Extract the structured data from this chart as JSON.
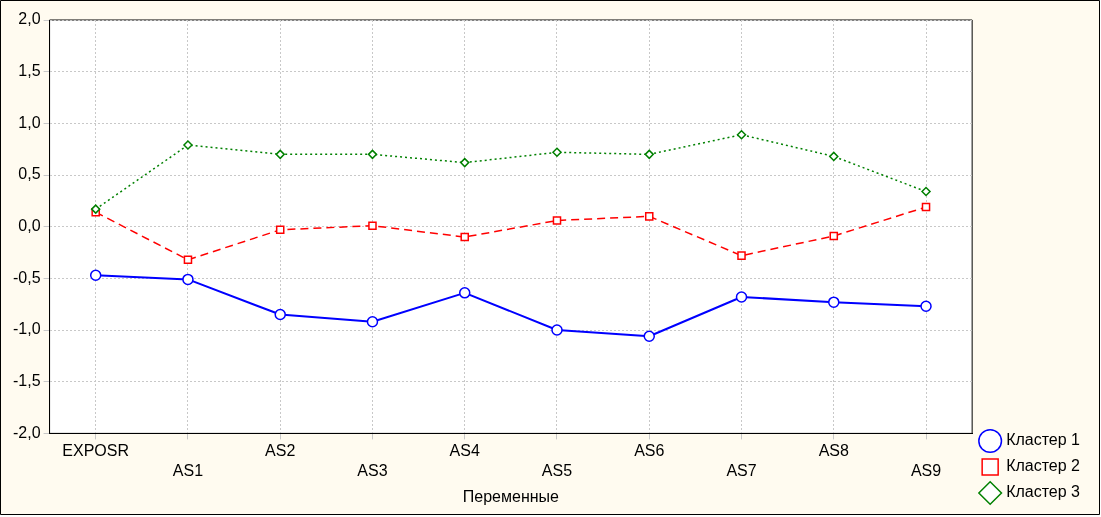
{
  "chart_data": {
    "type": "line",
    "xlabel": "Переменные",
    "categories": [
      "EXPOSR",
      "AS1",
      "AS2",
      "AS3",
      "AS4",
      "AS5",
      "AS6",
      "AS7",
      "AS8",
      "AS9"
    ],
    "series": [
      {
        "name": "Кластер 1",
        "color": "#0000ff",
        "marker": "circle",
        "line_style": "solid",
        "values": [
          -0.47,
          -0.51,
          -0.85,
          -0.92,
          -0.64,
          -1.0,
          -1.06,
          -0.68,
          -0.73,
          -0.77
        ]
      },
      {
        "name": "Кластер 2",
        "color": "#ff0000",
        "marker": "square",
        "line_style": "dashed",
        "values": [
          0.14,
          -0.32,
          -0.03,
          0.01,
          -0.1,
          0.06,
          0.1,
          -0.28,
          -0.09,
          0.19
        ]
      },
      {
        "name": "Кластер 3",
        "color": "#008000",
        "marker": "diamond",
        "line_style": "dotted",
        "values": [
          0.17,
          0.79,
          0.7,
          0.7,
          0.62,
          0.72,
          0.7,
          0.89,
          0.68,
          0.34
        ]
      }
    ],
    "ylim": [
      -2,
      2
    ],
    "yticks": [
      {
        "value": -2,
        "label": "-2,0"
      },
      {
        "value": -1.5,
        "label": "-1,5"
      },
      {
        "value": -1,
        "label": "-1,0"
      },
      {
        "value": -0.5,
        "label": "-0,5"
      },
      {
        "value": 0,
        "label": "0,0"
      },
      {
        "value": 0.5,
        "label": "0,5"
      },
      {
        "value": 1,
        "label": "1,0"
      },
      {
        "value": 1.5,
        "label": "1,5"
      },
      {
        "value": 2,
        "label": "2,0"
      }
    ],
    "grid": true,
    "legend": "bottom right"
  }
}
